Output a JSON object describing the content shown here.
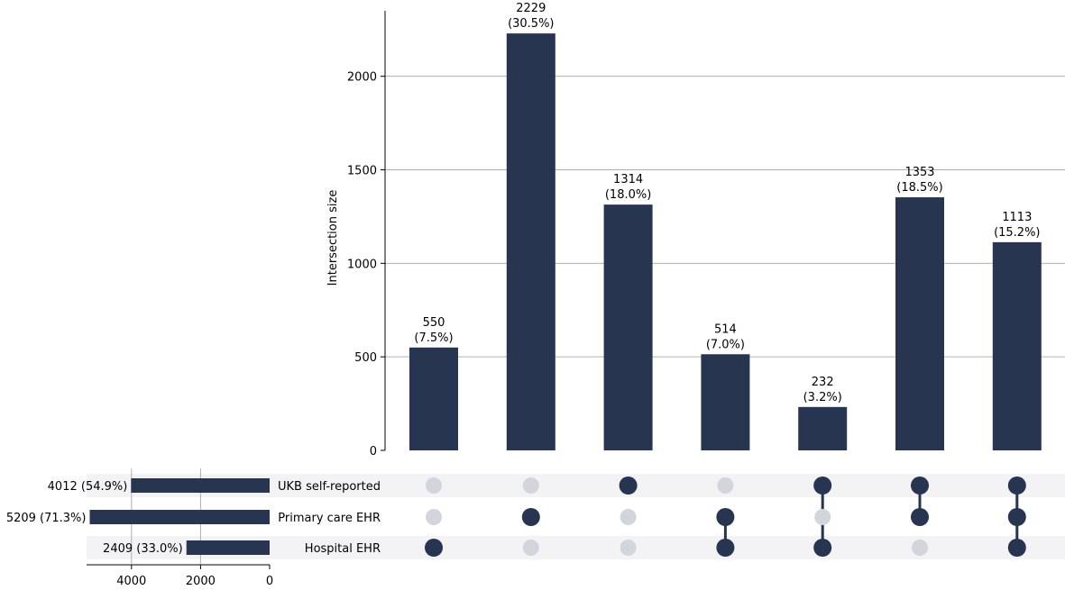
{
  "chart_data": {
    "type": "upset",
    "title": "",
    "colors": {
      "bar": "#283551",
      "dot_active": "#283551",
      "dot_inactive": "#d2d5db",
      "band": "#f3f3f5",
      "grid": "#b0b0b0"
    },
    "intersections": {
      "ylabel": "Intersection size",
      "ylim": [
        0,
        2350
      ],
      "yticks": [
        0,
        500,
        1000,
        1500,
        2000
      ],
      "grid": true,
      "values": [
        550,
        2229,
        1314,
        514,
        232,
        1353,
        1113
      ],
      "labels": [
        "550\n(7.5%)",
        "2229\n(30.5%)",
        "1314\n(18.0%)",
        "514\n(7.0%)",
        "232\n(3.2%)",
        "1353\n(18.5%)",
        "1113\n(15.2%)"
      ],
      "membership": [
        [
          false,
          false,
          true
        ],
        [
          false,
          true,
          false
        ],
        [
          true,
          false,
          false
        ],
        [
          false,
          true,
          true
        ],
        [
          true,
          false,
          true
        ],
        [
          true,
          true,
          false
        ],
        [
          true,
          true,
          true
        ]
      ]
    },
    "sets": {
      "names": [
        "UKB self-reported",
        "Primary care EHR",
        "Hospital EHR"
      ],
      "values": [
        4012,
        5209,
        2409
      ],
      "labels": [
        "4012 (54.9%)",
        "5209 (71.3%)",
        "2409 (33.0%)"
      ],
      "xticks": [
        4000,
        2000,
        0
      ],
      "xlim": [
        5300,
        0
      ],
      "grid": true
    }
  }
}
